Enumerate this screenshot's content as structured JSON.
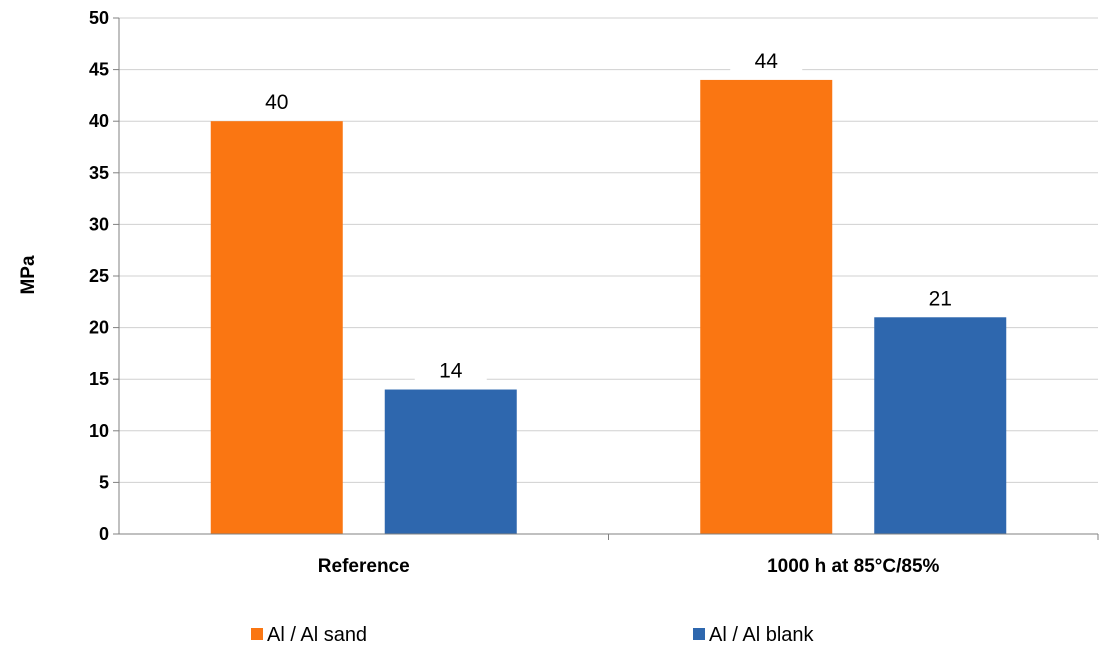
{
  "chart_data": {
    "type": "bar",
    "categories": [
      "Reference",
      "1000 h at 85°C/85%"
    ],
    "series": [
      {
        "name": "Al / Al sand",
        "values": [
          40,
          44
        ],
        "color": "#FA7612"
      },
      {
        "name": "Al / Al blank",
        "values": [
          14,
          21
        ],
        "color": "#2E67AE"
      }
    ],
    "title": "",
    "xlabel": "",
    "ylabel": "MPa",
    "ylim": [
      0,
      50
    ],
    "ytick_step": 5,
    "yticks": [
      "0",
      "5",
      "10",
      "15",
      "20",
      "25",
      "30",
      "35",
      "40",
      "45",
      "50"
    ],
    "data_labels": true,
    "grid": true,
    "legend_position": "bottom"
  }
}
